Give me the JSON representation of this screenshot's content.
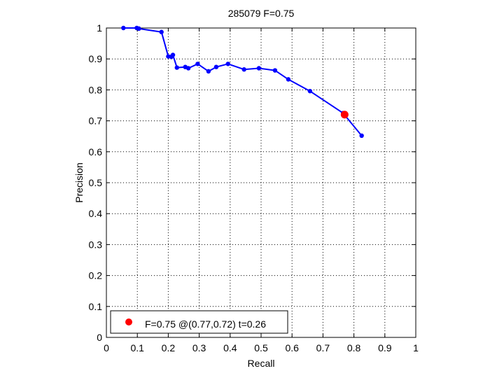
{
  "chart_data": {
    "type": "line",
    "title": "285079 F=0.75",
    "xlabel": "Recall",
    "ylabel": "Precision",
    "xlim": [
      0,
      1
    ],
    "ylim": [
      0,
      1
    ],
    "xticks": [
      "0",
      "0.1",
      "0.2",
      "0.3",
      "0.4",
      "0.5",
      "0.6",
      "0.7",
      "0.8",
      "0.9",
      "1"
    ],
    "yticks": [
      "0",
      "0.1",
      "0.2",
      "0.3",
      "0.4",
      "0.5",
      "0.6",
      "0.7",
      "0.8",
      "0.9",
      "1"
    ],
    "grid": true,
    "grid_style": "dotted",
    "legend_position": "bottom-left",
    "series": [
      {
        "color": "#0000ff",
        "marker": "circle",
        "x": [
          0.055,
          0.098,
          0.105,
          0.178,
          0.2,
          0.21,
          0.215,
          0.228,
          0.255,
          0.265,
          0.295,
          0.33,
          0.355,
          0.393,
          0.445,
          0.493,
          0.545,
          0.588,
          0.658,
          0.765,
          0.825
        ],
        "y": [
          1.0,
          1.0,
          0.998,
          0.987,
          0.908,
          0.907,
          0.913,
          0.872,
          0.874,
          0.87,
          0.884,
          0.86,
          0.874,
          0.884,
          0.866,
          0.87,
          0.863,
          0.834,
          0.796,
          0.725,
          0.652
        ]
      }
    ],
    "highlight": {
      "x": 0.77,
      "y": 0.72,
      "color": "#ff0000",
      "label": "F=0.75 @(0.77,0.72) t=0.26"
    }
  }
}
